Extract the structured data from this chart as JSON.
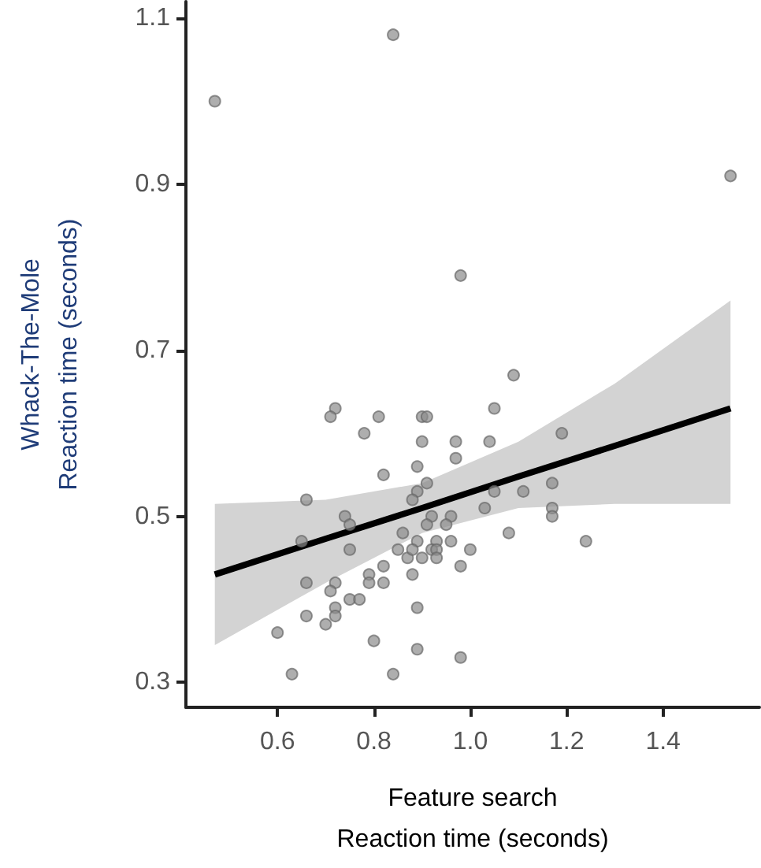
{
  "chart_data": {
    "type": "scatter",
    "xlabel": "Feature search\nReaction time (seconds)",
    "ylabel": "Whack-The-Mole\nReaction time (seconds)",
    "xlim": [
      0.41,
      1.6
    ],
    "ylim": [
      0.27,
      1.12
    ],
    "xticks": [
      0.6,
      0.8,
      {
        "value": 1,
        "label": "1.0"
      },
      1.2,
      1.4
    ],
    "yticks": [
      0.3,
      0.5,
      0.7,
      0.9,
      1.1
    ],
    "grid": false,
    "marker": "circle",
    "series": [
      {
        "color": "#8c8c8c",
        "x": [
          0.72,
          0.71,
          0.81,
          0.78,
          0.9,
          0.91,
          0.9,
          0.97,
          0.97,
          0.89,
          0.82,
          0.91,
          0.89,
          0.88,
          0.66,
          0.74,
          0.75,
          0.92,
          0.96,
          0.91,
          0.95,
          0.65,
          0.86,
          0.89,
          0.93,
          0.96,
          0.75,
          0.85,
          0.87,
          0.88,
          0.92,
          0.93,
          0.9,
          0.93,
          0.82,
          0.88,
          0.66,
          0.79,
          0.79,
          0.82,
          0.72,
          0.71,
          0.75,
          0.77,
          0.89,
          0.72,
          0.66,
          0.7,
          0.72,
          0.6,
          0.8,
          0.89,
          0.98,
          0.63,
          0.84,
          0.98,
          1.09,
          1.05,
          1.04,
          1.19,
          1.17,
          1.05,
          1.11,
          1.03,
          1.17,
          1.17,
          1.0,
          1.08,
          1.24,
          0.47,
          0.84,
          0.98,
          1.54
        ],
        "values": [
          0.63,
          0.62,
          0.62,
          0.6,
          0.62,
          0.62,
          0.59,
          0.59,
          0.57,
          0.56,
          0.55,
          0.54,
          0.53,
          0.52,
          0.52,
          0.5,
          0.49,
          0.5,
          0.5,
          0.49,
          0.49,
          0.47,
          0.48,
          0.47,
          0.47,
          0.47,
          0.46,
          0.46,
          0.45,
          0.46,
          0.46,
          0.46,
          0.45,
          0.45,
          0.44,
          0.43,
          0.42,
          0.43,
          0.42,
          0.42,
          0.42,
          0.41,
          0.4,
          0.4,
          0.39,
          0.39,
          0.38,
          0.37,
          0.38,
          0.36,
          0.35,
          0.34,
          0.33,
          0.31,
          0.31,
          0.44,
          0.67,
          0.63,
          0.59,
          0.6,
          0.54,
          0.53,
          0.53,
          0.51,
          0.51,
          0.5,
          0.46,
          0.48,
          0.47,
          1.0,
          1.08,
          0.79,
          0.91
        ]
      },
      {
        "type": "line",
        "color": "#000000",
        "x": [
          0.47,
          0.7,
          0.9,
          1.1,
          1.3,
          1.54
        ],
        "values": [
          0.43,
          0.473,
          0.51,
          0.548,
          0.585,
          0.63
        ],
        "marker": "none",
        "line_style": "solid",
        "lower": [
          0.345,
          0.42,
          0.48,
          0.51,
          0.515,
          0.515
        ],
        "upper": [
          0.515,
          0.52,
          0.54,
          0.59,
          0.66,
          0.76
        ]
      }
    ]
  }
}
